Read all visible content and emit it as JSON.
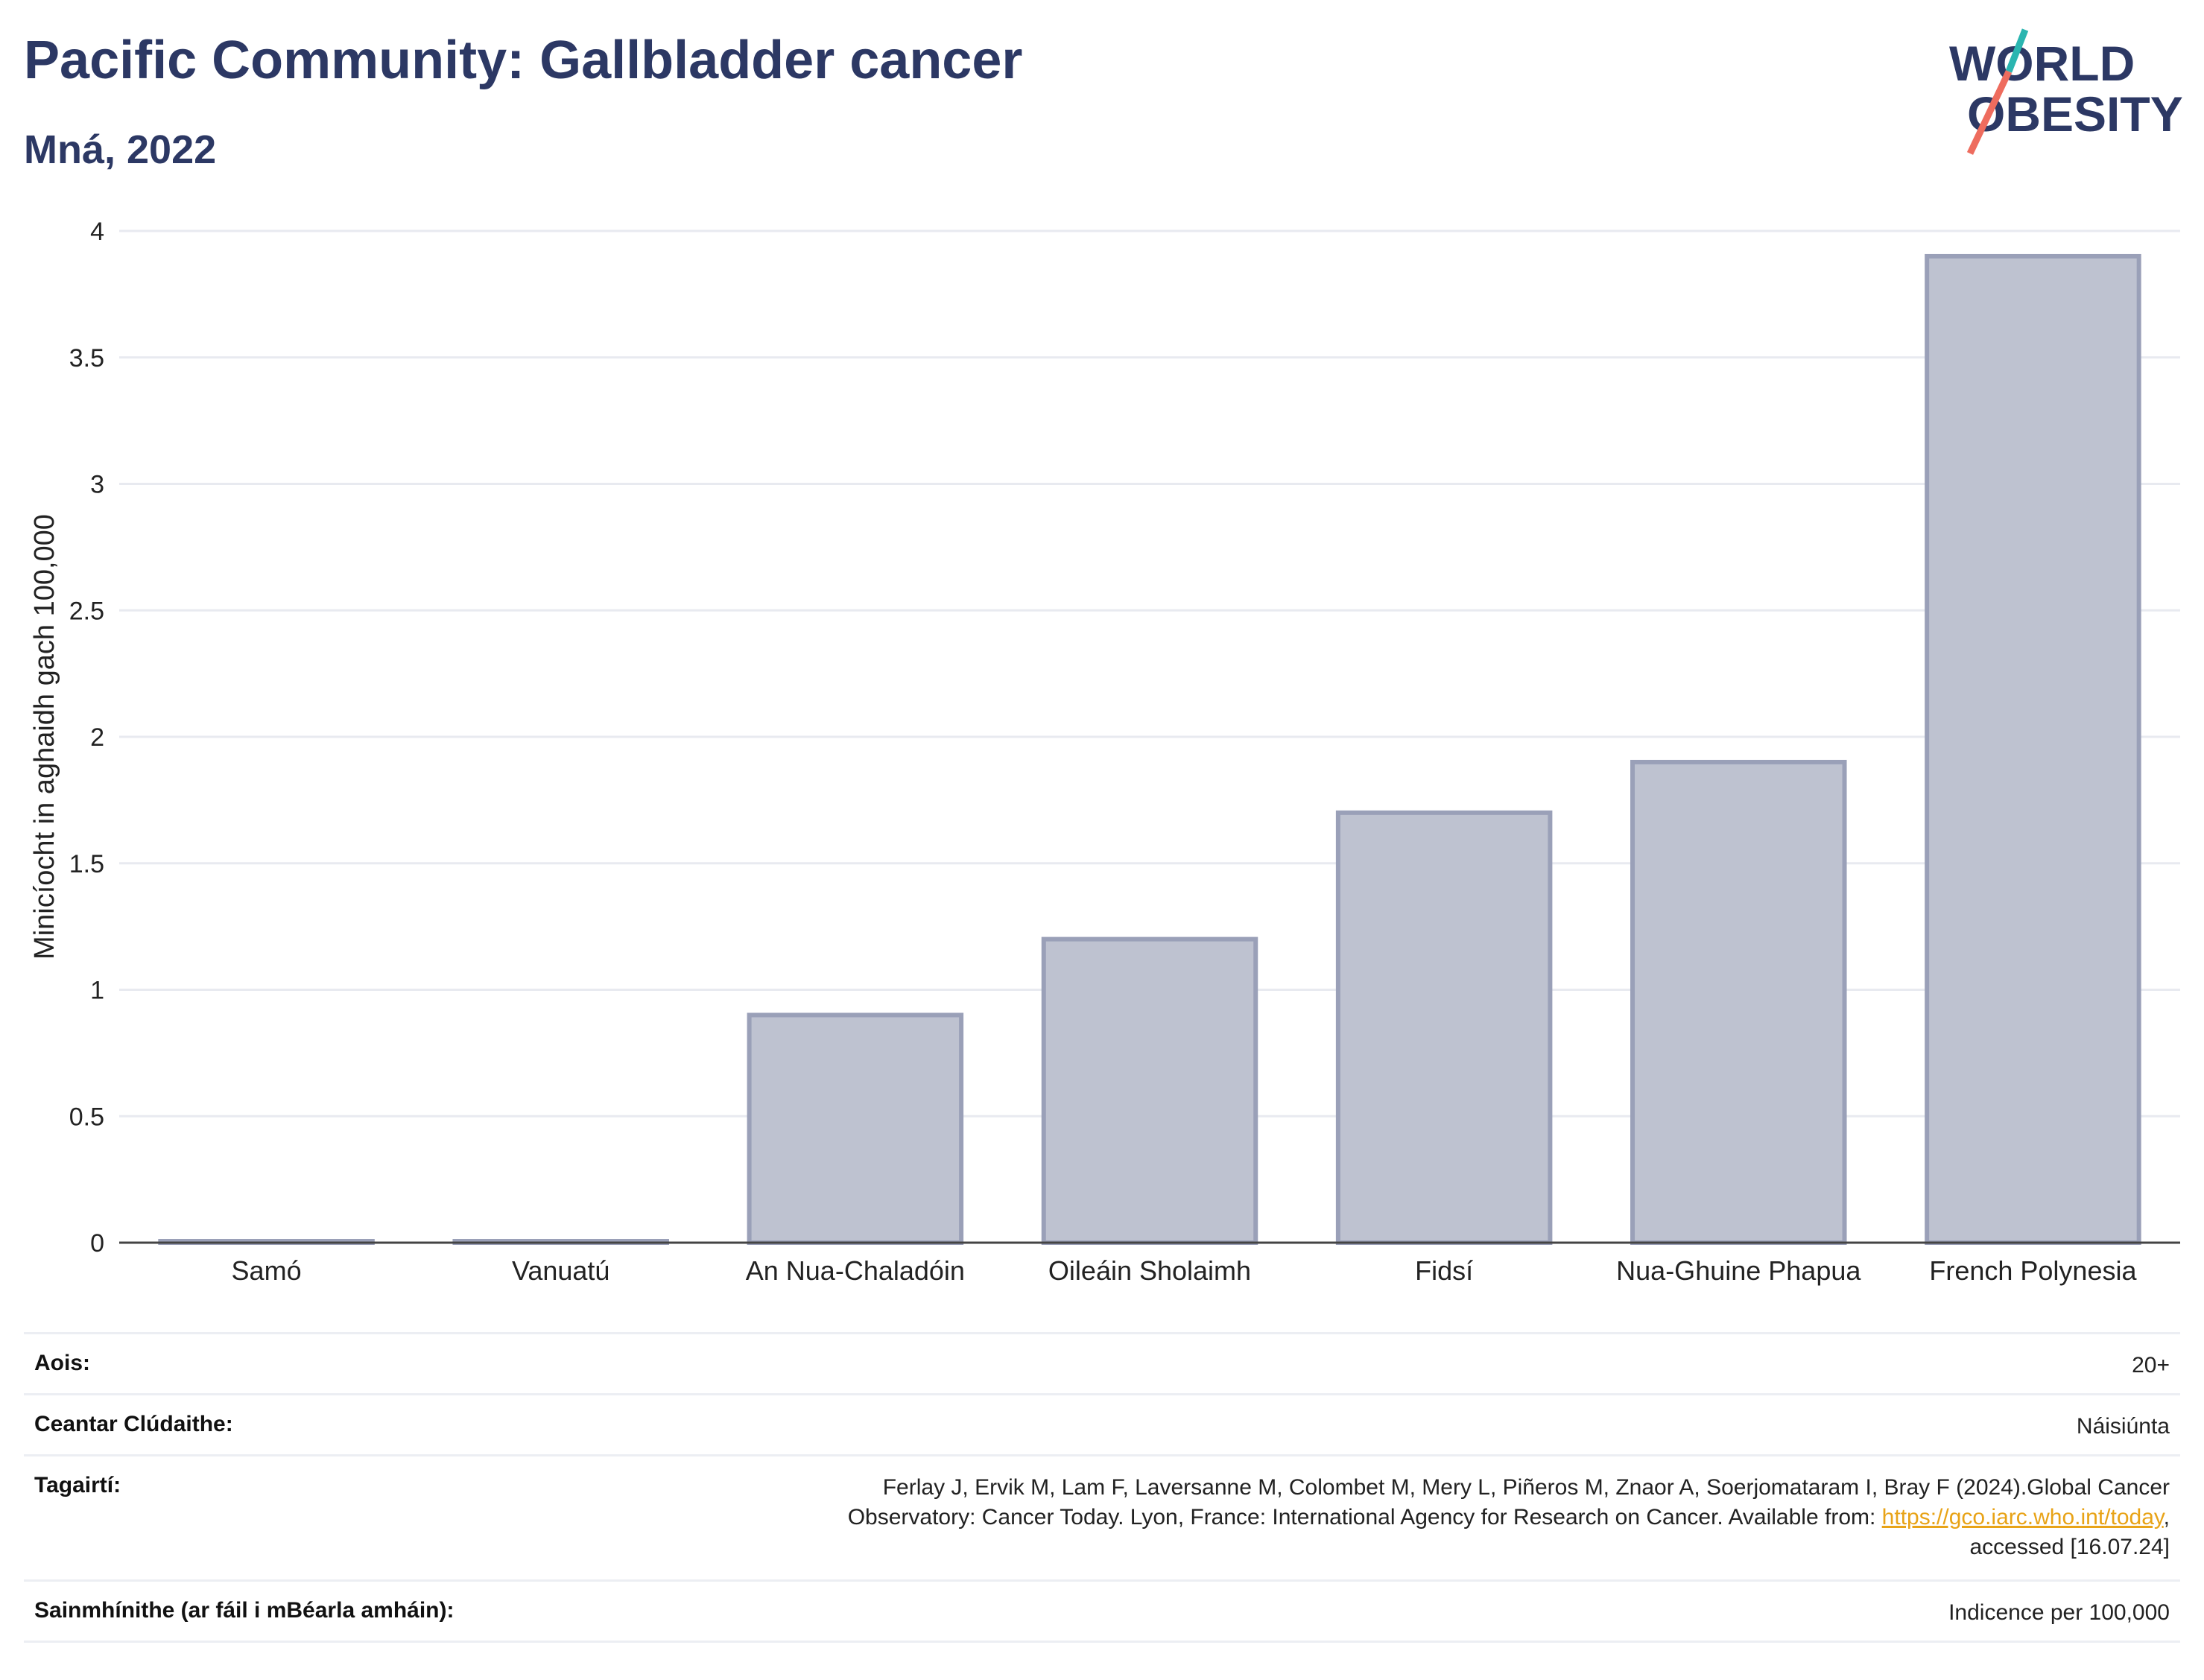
{
  "header": {
    "title": "Pacific Community: Gallbladder cancer",
    "subtitle": "Mná, 2022"
  },
  "logo": {
    "line1": "WORLD",
    "line2": "OBESITY"
  },
  "chart_data": {
    "type": "bar",
    "categories": [
      "Samó",
      "Vanuatú",
      "An Nua-Chaladóin",
      "Oileáin Sholaimh",
      "Fidsí",
      "Nua-Ghuine Phapua",
      "French Polynesia"
    ],
    "values": [
      0.0,
      0.0,
      0.9,
      1.2,
      1.7,
      1.9,
      3.9
    ],
    "ylabel": "Minicíocht in aghaidh gach 100,000",
    "xlabel": "",
    "ylim": [
      0,
      4
    ],
    "yticks": [
      0,
      0.5,
      1,
      1.5,
      2,
      2.5,
      3,
      3.5,
      4
    ],
    "ytick_labels": [
      "0",
      "0.5",
      "1",
      "1.5",
      "2",
      "2.5",
      "3",
      "3.5",
      "4"
    ],
    "grid": true,
    "bar_color": "#bec2d0",
    "bar_edge_color": "#9aa0b8"
  },
  "info": {
    "age": {
      "label": "Aois:",
      "value": "20+"
    },
    "area": {
      "label": "Ceantar Clúdaithe:",
      "value": "Náisiúnta"
    },
    "refs": {
      "label": "Tagairtí:",
      "line1": "Ferlay J, Ervik M, Lam F, Laversanne M, Colombet M, Mery L, Piñeros M, Znaor A, Soerjomataram I, Bray F (2024).Global Cancer",
      "line2_pre": "Observatory: Cancer Today. Lyon, France: International Agency for Research on Cancer. Available from: ",
      "link": "https://gco.iarc.who.int/today",
      "line2_post": ",",
      "line3": "accessed [16.07.24]"
    },
    "definitions": {
      "label": "Sainmhínithe (ar fáil i mBéarla amháin):",
      "value": "Indicence per 100,000"
    }
  }
}
